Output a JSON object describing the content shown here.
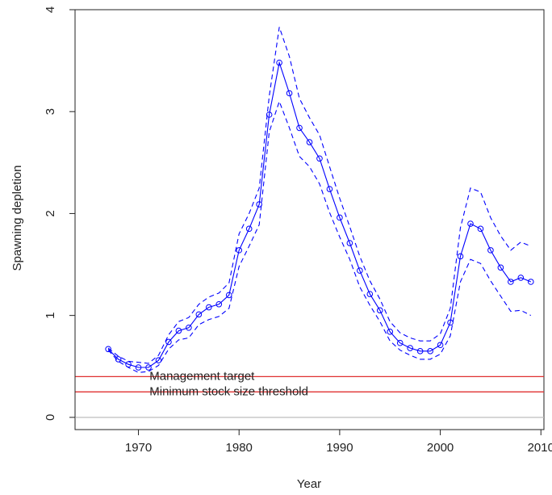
{
  "chart_data": {
    "type": "line",
    "xlabel": "Year",
    "ylabel": "Spawning depletion",
    "xlim": [
      1963.7,
      2010.3
    ],
    "ylim": [
      -0.12,
      4.0
    ],
    "xticks": [
      1970,
      1980,
      1990,
      2000,
      2010
    ],
    "yticks": [
      0,
      1,
      2,
      3,
      4
    ],
    "xtick_labels": [
      "1970",
      "1980",
      "1990",
      "2000",
      "2010"
    ],
    "ytick_labels": [
      "0",
      "1",
      "2",
      "3",
      "4"
    ],
    "grid": false,
    "x": [
      1967,
      1968,
      1969,
      1970,
      1971,
      1972,
      1973,
      1974,
      1975,
      1976,
      1977,
      1978,
      1979,
      1980,
      1981,
      1982,
      1983,
      1984,
      1985,
      1986,
      1987,
      1988,
      1989,
      1990,
      1991,
      1992,
      1993,
      1994,
      1995,
      1996,
      1997,
      1998,
      1999,
      2000,
      2001,
      2002,
      2003,
      2004,
      2005,
      2006,
      2007,
      2008,
      2009
    ],
    "series": [
      {
        "style": "solid-with-circles",
        "color": "#0000ff",
        "values": [
          0.67,
          0.57,
          0.52,
          0.49,
          0.49,
          0.56,
          0.74,
          0.85,
          0.88,
          1.01,
          1.08,
          1.11,
          1.2,
          1.64,
          1.85,
          2.09,
          2.97,
          3.48,
          3.18,
          2.84,
          2.7,
          2.54,
          2.24,
          1.96,
          1.71,
          1.44,
          1.21,
          1.05,
          0.84,
          0.73,
          0.68,
          0.65,
          0.65,
          0.71,
          0.93,
          1.58,
          1.9,
          1.85,
          1.64,
          1.47,
          1.33,
          1.37,
          1.33
        ]
      },
      {
        "style": "dashed",
        "color": "#0000ff",
        "values": [
          0.68,
          0.6,
          0.55,
          0.54,
          0.53,
          0.61,
          0.81,
          0.94,
          0.98,
          1.11,
          1.18,
          1.22,
          1.32,
          1.8,
          2.0,
          2.25,
          3.15,
          3.83,
          3.54,
          3.13,
          2.94,
          2.77,
          2.46,
          2.15,
          1.87,
          1.58,
          1.34,
          1.16,
          0.94,
          0.83,
          0.78,
          0.75,
          0.75,
          0.82,
          1.07,
          1.86,
          2.25,
          2.21,
          1.96,
          1.78,
          1.64,
          1.72,
          1.68
        ]
      },
      {
        "style": "dashed",
        "color": "#0000ff",
        "values": [
          0.66,
          0.55,
          0.49,
          0.44,
          0.45,
          0.51,
          0.67,
          0.76,
          0.78,
          0.91,
          0.96,
          0.99,
          1.07,
          1.48,
          1.68,
          1.89,
          2.8,
          3.1,
          2.84,
          2.56,
          2.46,
          2.29,
          2.01,
          1.77,
          1.55,
          1.28,
          1.1,
          0.94,
          0.75,
          0.66,
          0.61,
          0.57,
          0.57,
          0.62,
          0.8,
          1.33,
          1.55,
          1.51,
          1.34,
          1.19,
          1.04,
          1.05,
          1.0
        ]
      }
    ],
    "hlines": [
      {
        "y": 0.4,
        "label": "Management target",
        "color": "#e03030"
      },
      {
        "y": 0.25,
        "label": "Minimum stock size threshold",
        "color": "#e03030"
      },
      {
        "y": 0.0,
        "label": "",
        "color": "#bdbdbd"
      }
    ],
    "line_color": "#0000ff"
  }
}
